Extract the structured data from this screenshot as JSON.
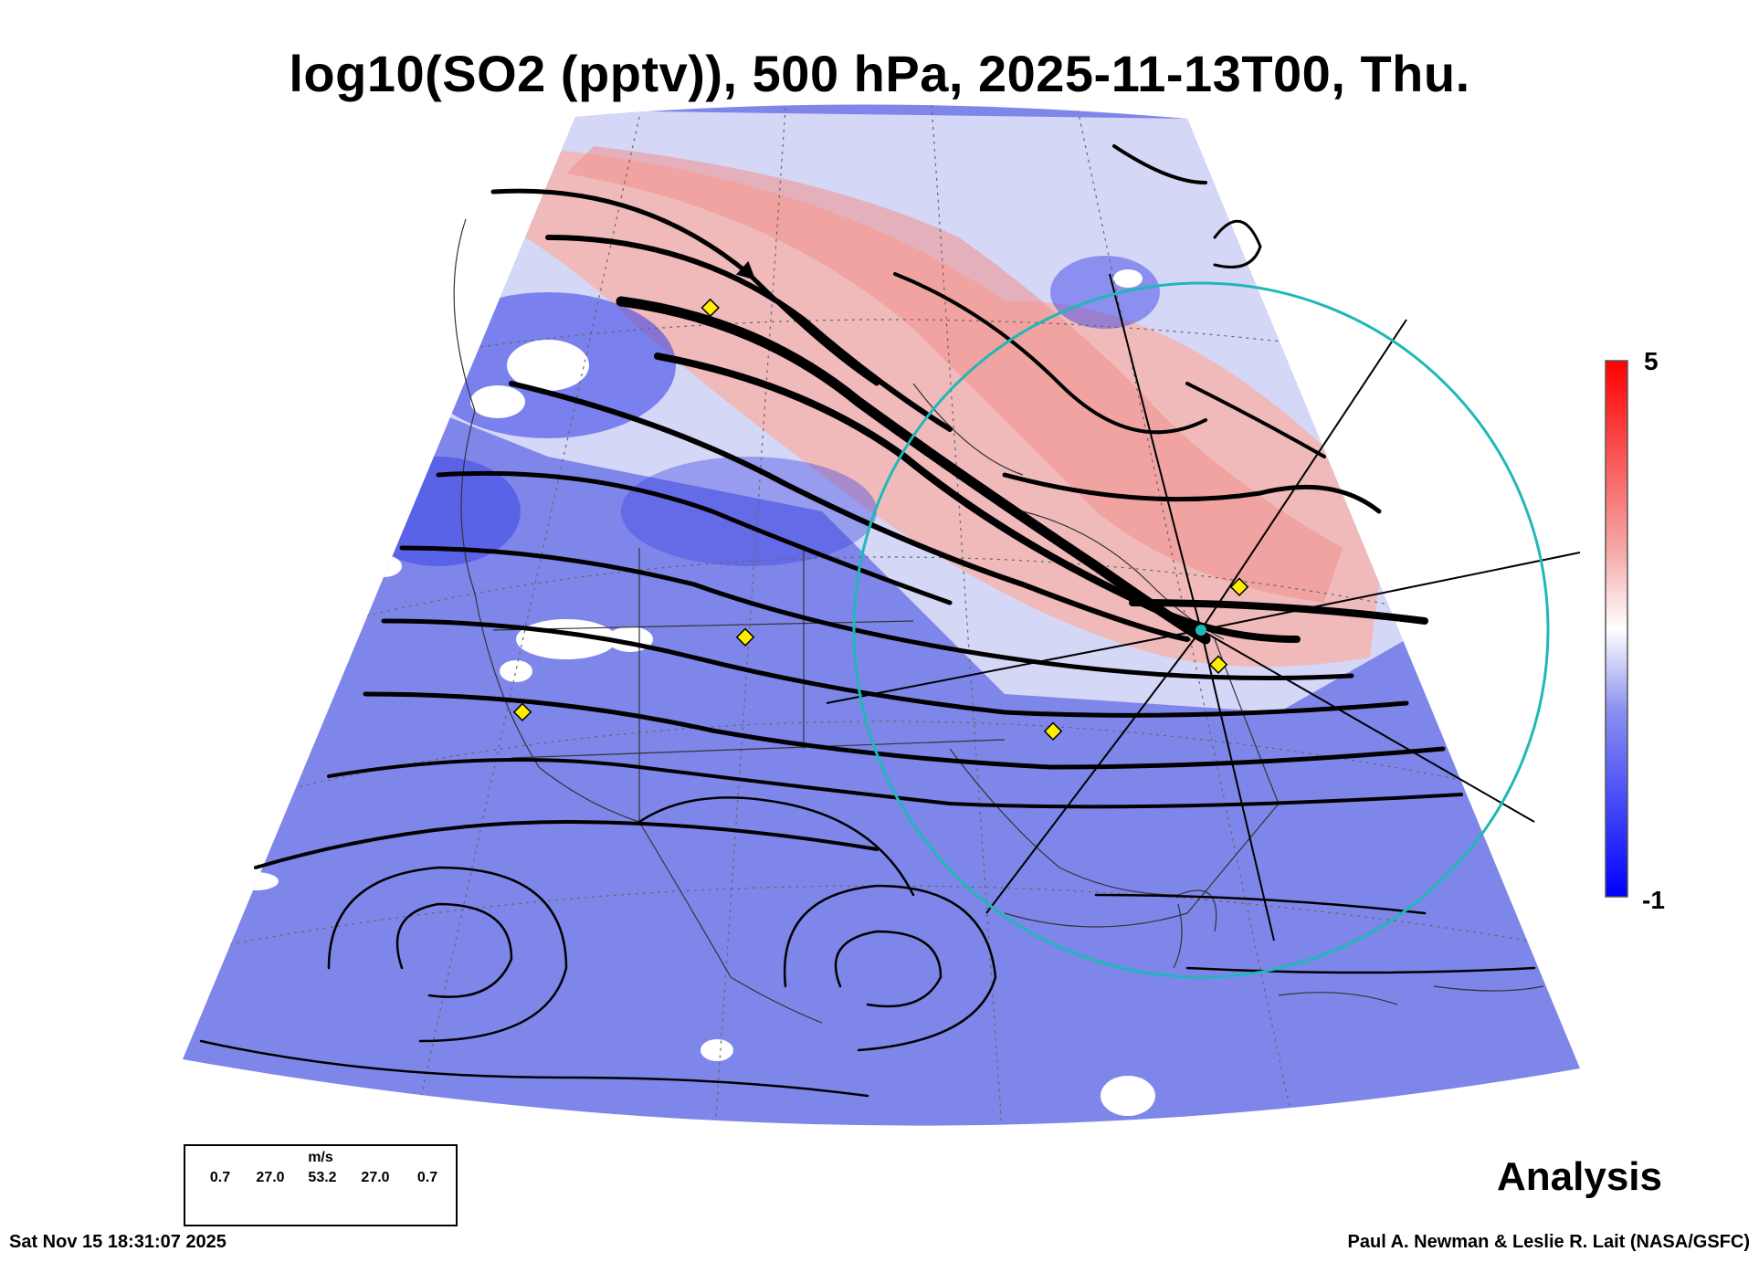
{
  "title": "log10(SO2 (pptv)), 500 hPa, 2025-11-13T00, Thu.",
  "colorbar": {
    "max_label": "5",
    "min_label": "-1",
    "colors": [
      "#0000ff",
      "#ffffff",
      "#ff0000"
    ]
  },
  "analysis_label": "Analysis",
  "timestamp": "Sat Nov 15 18:31:07 2025",
  "credit": "Paul A. Newman & Leslie R. Lait (NASA/GSFC)",
  "wind_legend": {
    "unit": "m/s",
    "values": [
      "0.7",
      "27.0",
      "53.2",
      "27.0",
      "0.7"
    ]
  },
  "colors": {
    "ring": "#1fb8b8",
    "marker": "#ffee00",
    "streamline": "#000000"
  }
}
